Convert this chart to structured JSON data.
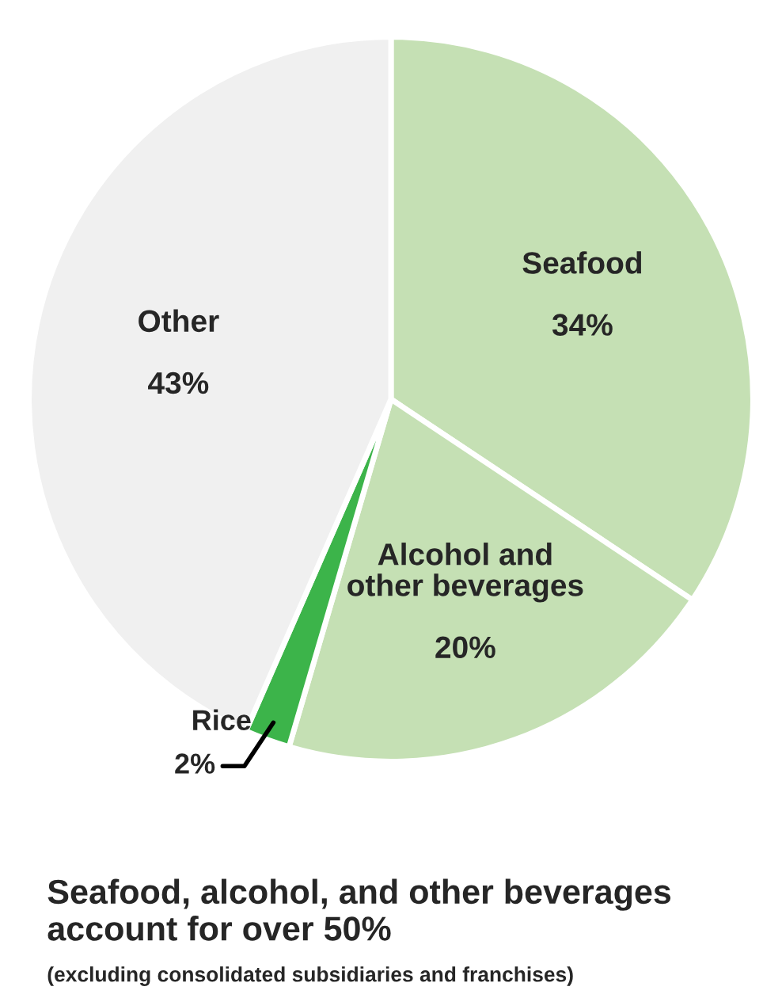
{
  "chart_data": {
    "type": "pie",
    "categories": [
      "Seafood",
      "Alcohol and other beverages",
      "Rice",
      "Other"
    ],
    "values": [
      34,
      20,
      2,
      43
    ],
    "value_labels": [
      "34%",
      "20%",
      "2%",
      "43%"
    ],
    "colors": [
      "#c5e0b4",
      "#c5e0b4",
      "#3cb44a",
      "#f0f0f0"
    ],
    "title": "Seafood, alcohol, and other beverages account for over 50%",
    "subtitle": "(excluding consolidated subsidiaries and franchises)",
    "legend": false
  }
}
